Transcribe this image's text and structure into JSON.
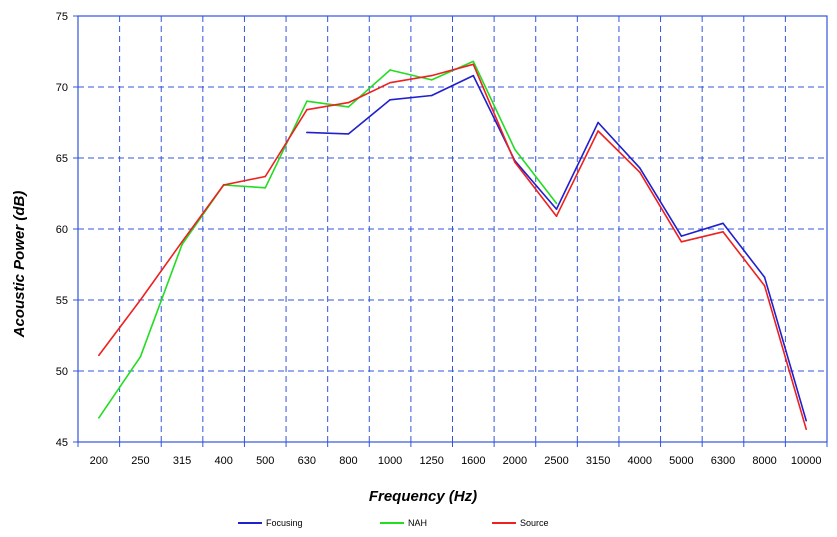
{
  "chart_data": {
    "type": "line",
    "title": "",
    "xlabel": "Frequency (Hz)",
    "ylabel": "Acoustic Power (dB)",
    "categories": [
      "200",
      "250",
      "315",
      "400",
      "500",
      "630",
      "800",
      "1000",
      "1250",
      "1600",
      "2000",
      "2500",
      "3150",
      "4000",
      "5000",
      "6300",
      "8000",
      "10000"
    ],
    "ylim": [
      45,
      75
    ],
    "yticks": [
      45,
      50,
      55,
      60,
      65,
      70,
      75
    ],
    "grid": true,
    "legend_position": "bottom",
    "series": [
      {
        "name": "Focusing",
        "color": "#2020cc",
        "values": [
          null,
          null,
          null,
          null,
          null,
          66.8,
          66.7,
          69.1,
          69.4,
          70.8,
          64.8,
          61.4,
          67.5,
          64.3,
          59.5,
          60.4,
          56.6,
          46.5
        ]
      },
      {
        "name": "NAH",
        "color": "#22dd22",
        "values": [
          46.7,
          51.0,
          58.9,
          63.1,
          62.9,
          69.0,
          68.6,
          71.2,
          70.5,
          71.8,
          65.6,
          61.8,
          null,
          null,
          null,
          null,
          null,
          null
        ]
      },
      {
        "name": "Source",
        "color": "#ee2020",
        "values": [
          51.1,
          55.0,
          59.1,
          63.1,
          63.7,
          68.4,
          68.9,
          70.3,
          70.8,
          71.6,
          64.7,
          60.9,
          66.9,
          64.0,
          59.1,
          59.8,
          56.0,
          45.9
        ]
      }
    ]
  }
}
